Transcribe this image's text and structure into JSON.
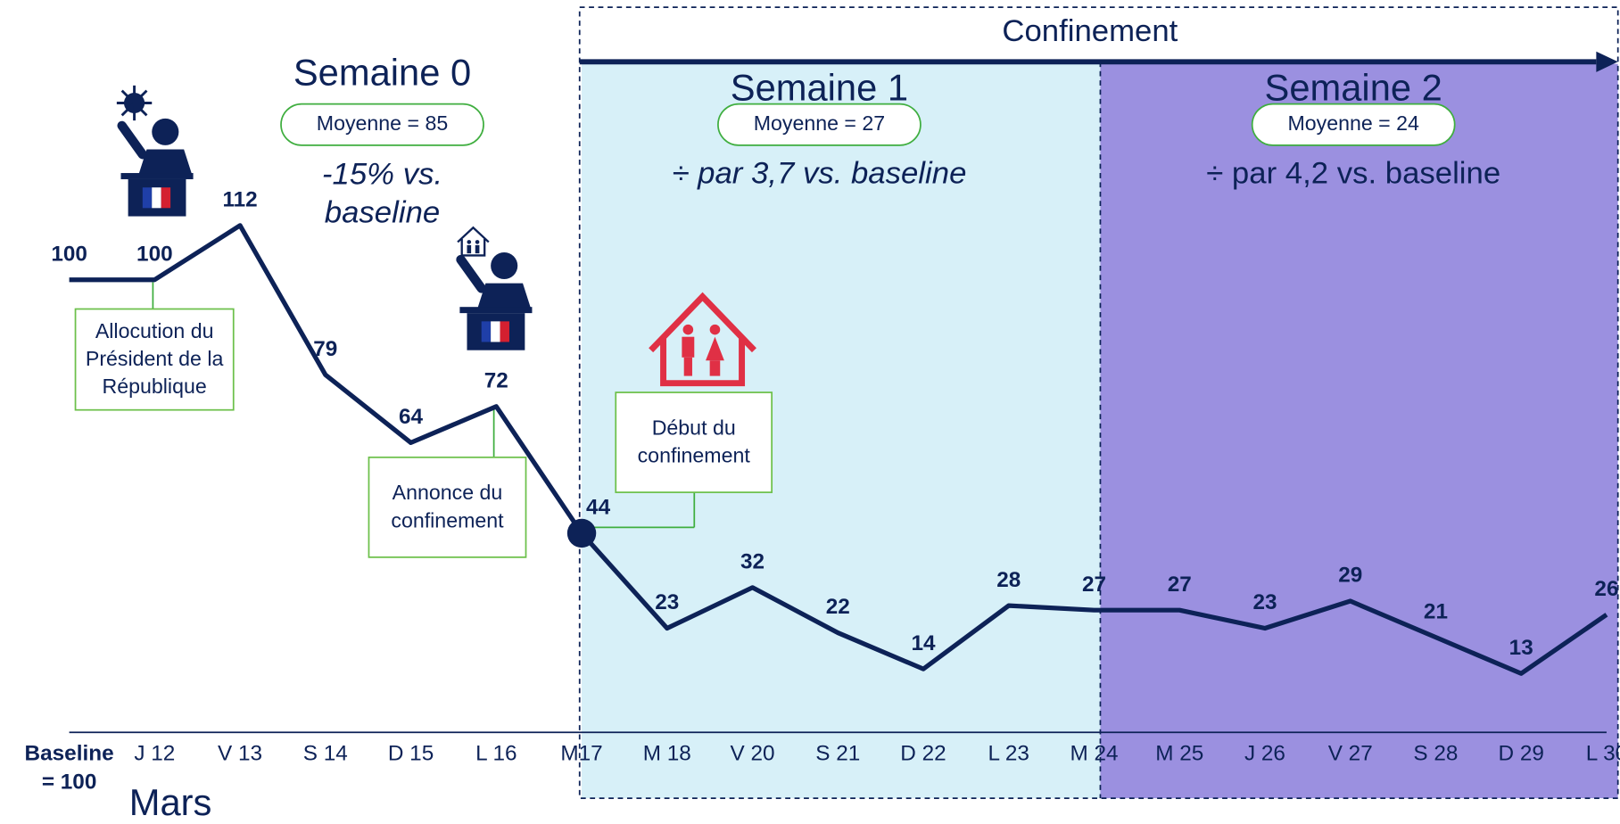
{
  "chart_data": {
    "type": "line",
    "title": "Confinement",
    "x_label": "Mars",
    "categories": [
      "Baseline = 100",
      "J 12",
      "V 13",
      "S 14",
      "D 15",
      "L 16",
      "M17",
      "M 18",
      "V 20",
      "S 21",
      "D 22",
      "L 23",
      "M 24",
      "M 25",
      "J 26",
      "V 27",
      "S 28",
      "D 29",
      "L 30"
    ],
    "values": [
      100,
      100,
      112,
      79,
      64,
      72,
      44,
      23,
      32,
      22,
      14,
      28,
      27,
      27,
      23,
      29,
      21,
      13,
      26
    ],
    "color": "#0d2257",
    "ylim": [
      0,
      160
    ],
    "periods": [
      {
        "name": "Semaine 0",
        "average": "Moyenne = 85",
        "comparison": "-15% vs. baseline"
      },
      {
        "name": "Semaine 1",
        "average": "Moyenne = 27",
        "comparison": "÷ par 3,7 vs. baseline",
        "color": "#d7f0f8"
      },
      {
        "name": "Semaine 2",
        "average": "Moyenne = 24",
        "comparison": "÷ par 4,2 vs. baseline",
        "color": "#9b90e0"
      }
    ],
    "annotations": [
      {
        "text": "Allocution du Président de la République"
      },
      {
        "text": "Annonce du confinement"
      },
      {
        "text": "Début du confinement"
      }
    ]
  }
}
